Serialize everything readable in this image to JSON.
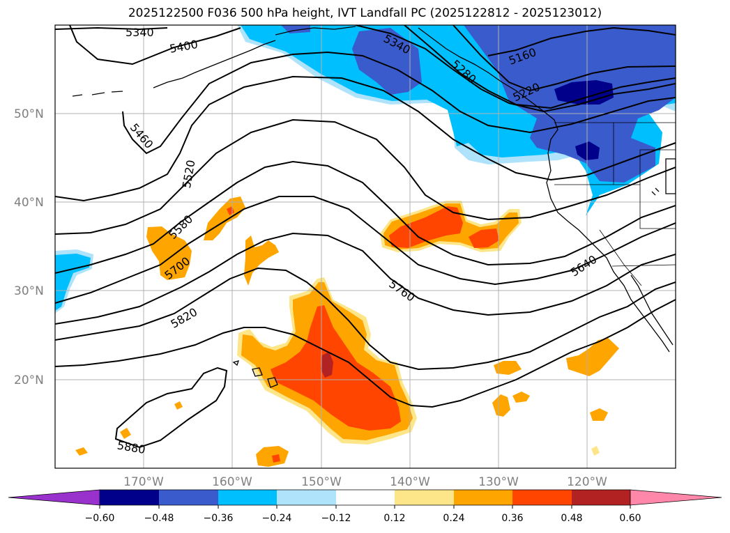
{
  "title": "2025122500 F036 500 hPa height, IVT Landfall PC (2025122812 - 2025123012)",
  "map": {
    "lon_labels": [
      "170°W",
      "160°W",
      "150°W",
      "140°W",
      "130°W",
      "120°W"
    ],
    "lat_labels": [
      "50°N",
      "40°N",
      "30°N",
      "20°N"
    ],
    "contour_labels": [
      "5340",
      "5400",
      "5460",
      "5520",
      "5580",
      "5700",
      "5820",
      "5880",
      "5340",
      "5280",
      "5160",
      "5220",
      "5760",
      "5640"
    ],
    "colors": {
      "light_blue": "#aee3fb",
      "cyan": "#00bfff",
      "royal_blue": "#3a5bcb",
      "navy": "#00008b",
      "yellow": "#fde68a",
      "orange": "#ffa500",
      "red_orange": "#ff4500",
      "dark_red": "#b22222"
    }
  },
  "colorbar": {
    "ticks": [
      "−0.60",
      "−0.48",
      "−0.36",
      "−0.24",
      "−0.12",
      "0.12",
      "0.24",
      "0.36",
      "0.48",
      "0.60"
    ],
    "colors": [
      "#9932cc",
      "#00008b",
      "#3a5bcb",
      "#00bfff",
      "#aee3fb",
      "#ffffff",
      "#fde68a",
      "#ffa500",
      "#ff4500",
      "#b22222",
      "#ff88aa"
    ]
  }
}
